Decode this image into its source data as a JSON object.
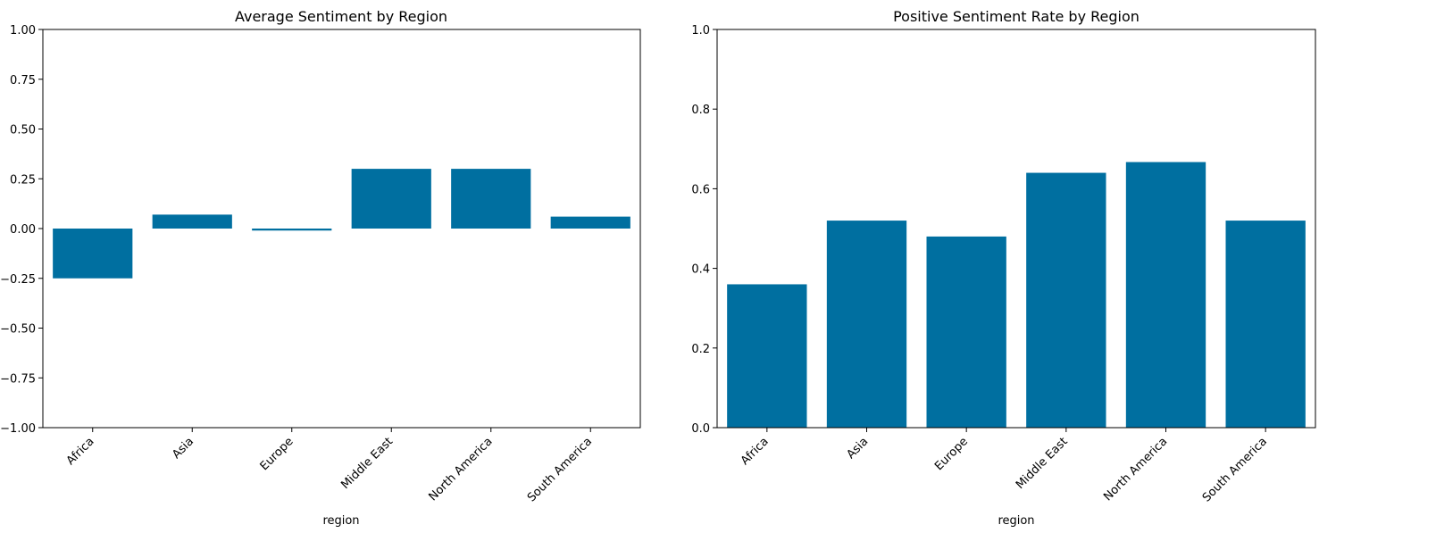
{
  "chart_data": [
    {
      "type": "bar",
      "title": "Average Sentiment by Region",
      "xlabel": "region",
      "ylabel": "",
      "categories": [
        "Africa",
        "Asia",
        "Europe",
        "Middle East",
        "North America",
        "South America"
      ],
      "values": [
        -0.25,
        0.07,
        -0.01,
        0.3,
        0.3,
        0.06
      ],
      "ylim": [
        -1.0,
        1.0
      ],
      "yticks": [
        "-1.00",
        "-0.75",
        "-0.50",
        "-0.25",
        "0.00",
        "0.25",
        "0.50",
        "0.75",
        "1.00"
      ],
      "color": "#006fa0",
      "grid": false,
      "legend": "none"
    },
    {
      "type": "bar",
      "title": "Positive Sentiment Rate by Region",
      "xlabel": "region",
      "ylabel": "",
      "categories": [
        "Africa",
        "Asia",
        "Europe",
        "Middle East",
        "North America",
        "South America"
      ],
      "values": [
        0.36,
        0.52,
        0.48,
        0.64,
        0.667,
        0.52
      ],
      "ylim": [
        0.0,
        1.0
      ],
      "yticks": [
        "0.0",
        "0.2",
        "0.4",
        "0.6",
        "0.8",
        "1.0"
      ],
      "color": "#006fa0",
      "grid": false,
      "legend": "none"
    }
  ]
}
